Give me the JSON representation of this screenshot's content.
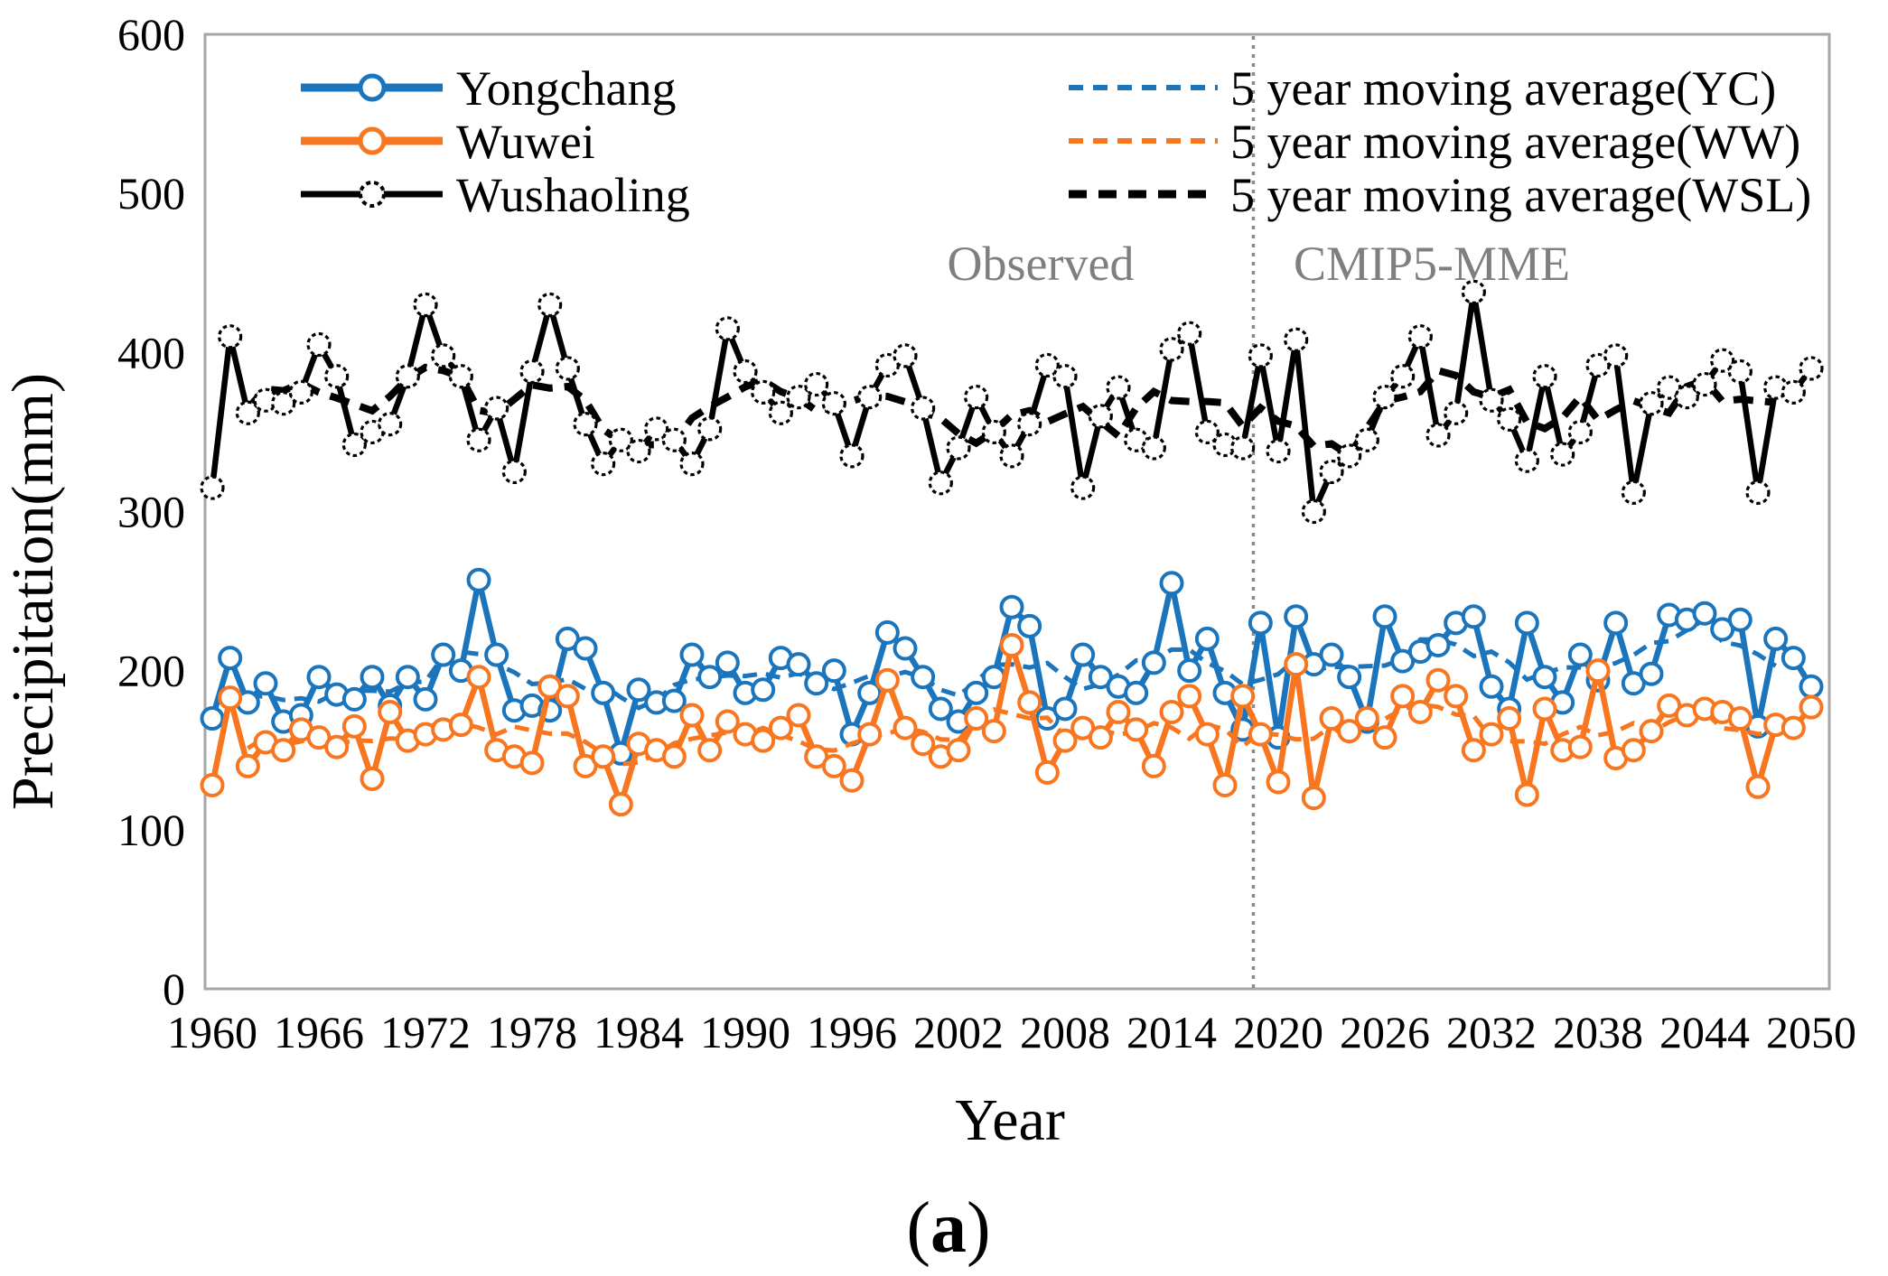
{
  "figure": {
    "caption_open": "(",
    "caption_letter": "a",
    "caption_close": ")"
  },
  "annotations": {
    "observed_label": "Observed",
    "cmip5_label": "CMIP5-MME",
    "divider_year": 2018.6,
    "label_color": "#7f7f7f",
    "divider_color": "#8a8a8a"
  },
  "legend": {
    "items": [
      {
        "label": "Yongchang",
        "style": "solid-line-circle-marker"
      },
      {
        "label": "Wuwei",
        "style": "solid-line-circle-marker"
      },
      {
        "label": "Wushaoling",
        "style": "solid-line-dashed-circle-marker"
      },
      {
        "label": "5 year moving average(YC)",
        "style": "dashed-line"
      },
      {
        "label": "5 year moving average(WW)",
        "style": "dashed-line"
      },
      {
        "label": "5 year moving average(WSL)",
        "style": "bold-dashed-line"
      }
    ]
  },
  "colors": {
    "frame": "#a6a6a6",
    "background": "#ffffff",
    "yongchang": "#1b75bc",
    "wuwei": "#f8761f",
    "wushaoling": "#000000"
  },
  "chart_data": {
    "type": "line",
    "title": "",
    "xlabel": "Year",
    "ylabel": "Precipitation(mm)",
    "ylim": [
      0,
      600
    ],
    "y_ticks": [
      0,
      100,
      200,
      300,
      400,
      500,
      600
    ],
    "x_ticks": [
      1960,
      1966,
      1972,
      1978,
      1984,
      1990,
      1996,
      2002,
      2008,
      2014,
      2020,
      2026,
      2032,
      2038,
      2044,
      2050
    ],
    "x_range": [
      1960,
      2050
    ],
    "grid": false,
    "legend_position": "top-inside",
    "moving_average_window": 5,
    "series": [
      {
        "name": "Yongchang",
        "short": "YC",
        "color": "#1b75bc",
        "marker": "open-circle",
        "start_year": 1960,
        "values": [
          170,
          208,
          180,
          192,
          168,
          172,
          196,
          185,
          182,
          196,
          178,
          196,
          182,
          210,
          200,
          257,
          210,
          175,
          178,
          175,
          220,
          214,
          186,
          148,
          188,
          180,
          181,
          210,
          196,
          205,
          186,
          188,
          208,
          204,
          192,
          200,
          160,
          186,
          224,
          214,
          196,
          176,
          168,
          186,
          196,
          240,
          228,
          170,
          176,
          210,
          196,
          190,
          186,
          205,
          255,
          200,
          220,
          186,
          163,
          230,
          158,
          234,
          204,
          210,
          196,
          168,
          234,
          206,
          212,
          216,
          230,
          234,
          190,
          176,
          230,
          196,
          180,
          210,
          194,
          230,
          192,
          198,
          235,
          232,
          236,
          226,
          232,
          165,
          220,
          208,
          190
        ]
      },
      {
        "name": "Wuwei",
        "short": "WW",
        "color": "#f8761f",
        "marker": "open-circle",
        "start_year": 1960,
        "values": [
          128,
          183,
          140,
          155,
          150,
          163,
          158,
          152,
          165,
          132,
          174,
          156,
          160,
          163,
          166,
          196,
          150,
          146,
          142,
          190,
          184,
          140,
          146,
          116,
          154,
          150,
          146,
          172,
          150,
          168,
          160,
          156,
          164,
          172,
          146,
          140,
          131,
          160,
          194,
          164,
          154,
          146,
          150,
          170,
          162,
          216,
          180,
          136,
          156,
          164,
          158,
          174,
          163,
          140,
          174,
          184,
          160,
          128,
          184,
          160,
          130,
          204,
          120,
          170,
          162,
          170,
          158,
          184,
          174,
          194,
          184,
          150,
          160,
          170,
          122,
          176,
          150,
          152,
          200,
          145,
          150,
          162,
          178,
          172,
          176,
          174,
          170,
          127,
          166,
          164,
          177
        ]
      },
      {
        "name": "Wushaoling",
        "short": "WSL",
        "color": "#000000",
        "marker": "dashed-open-circle",
        "start_year": 1960,
        "values": [
          315,
          410,
          362,
          370,
          368,
          375,
          405,
          385,
          342,
          350,
          355,
          385,
          430,
          398,
          385,
          345,
          365,
          325,
          388,
          430,
          390,
          355,
          330,
          345,
          338,
          352,
          345,
          330,
          352,
          415,
          388,
          375,
          362,
          372,
          380,
          368,
          335,
          372,
          392,
          398,
          365,
          318,
          340,
          372,
          350,
          335,
          355,
          392,
          385,
          315,
          360,
          378,
          345,
          340,
          402,
          412,
          350,
          342,
          340,
          398,
          338,
          408,
          300,
          325,
          335,
          345,
          372,
          385,
          410,
          348,
          362,
          438,
          370,
          358,
          332,
          385,
          336,
          350,
          392,
          398,
          312,
          368,
          378,
          372,
          380,
          395,
          388,
          312,
          378,
          375,
          390
        ]
      }
    ]
  }
}
